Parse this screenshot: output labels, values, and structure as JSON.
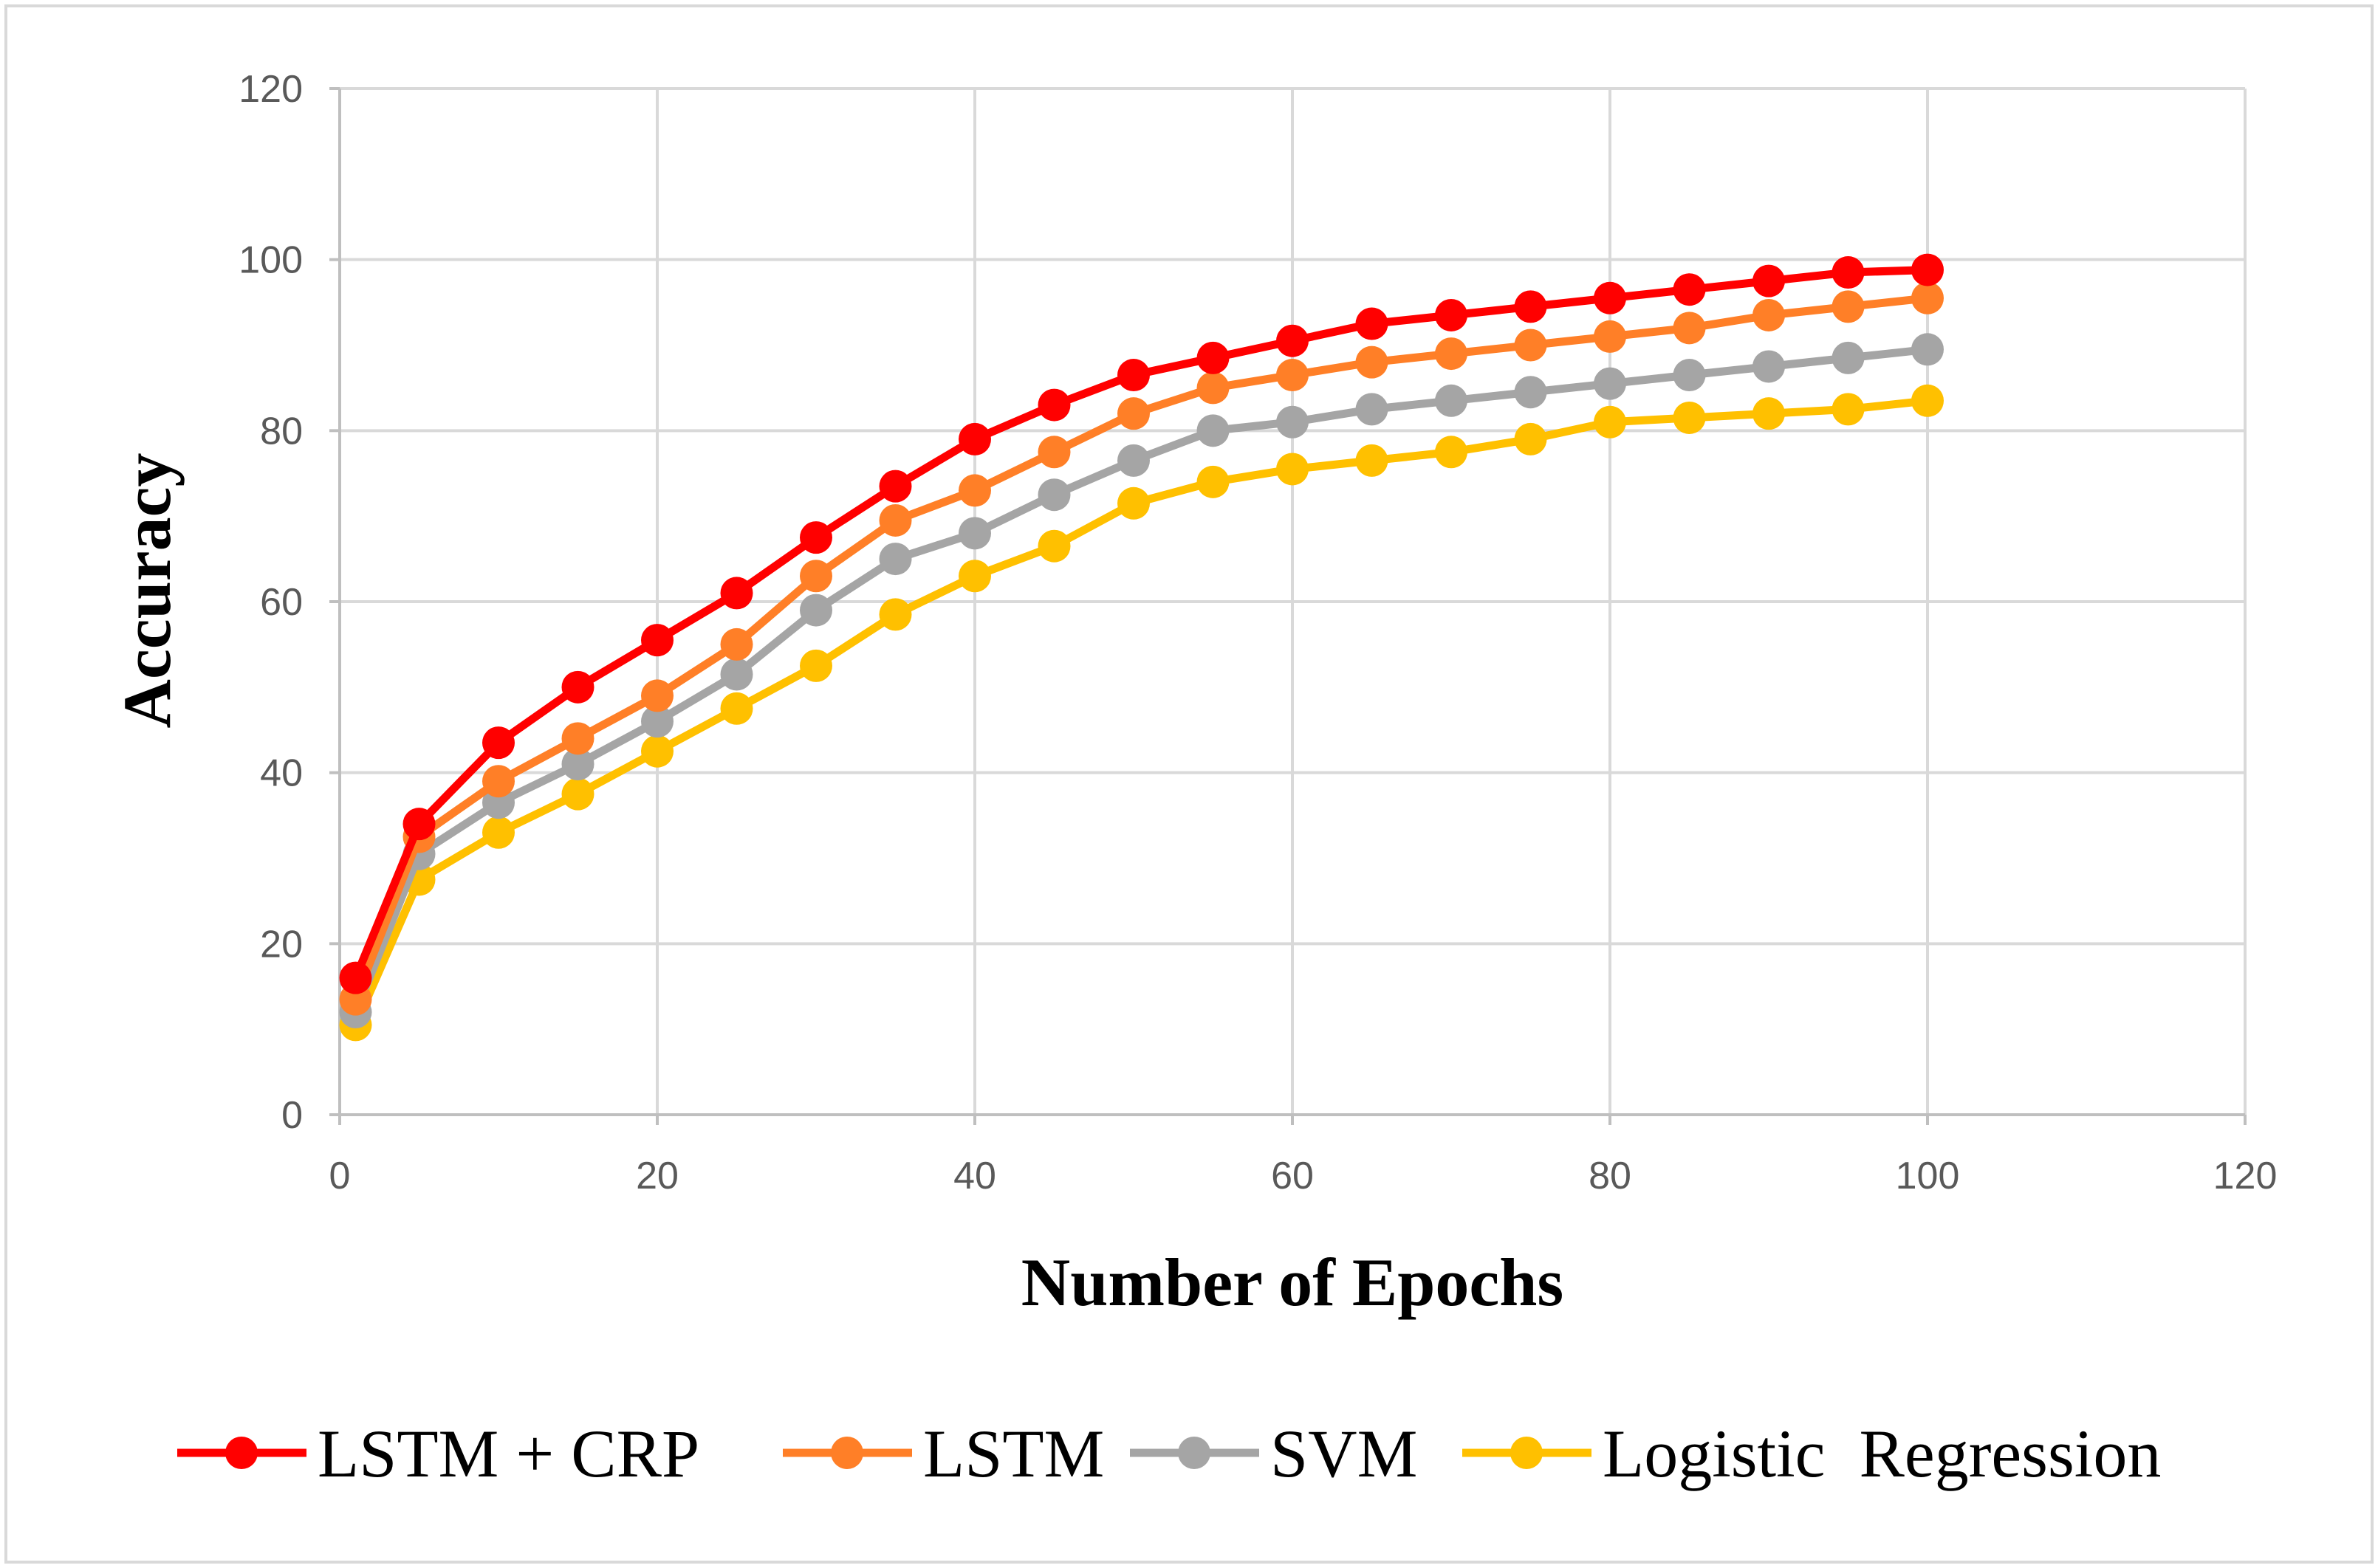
{
  "chart_data": {
    "type": "line",
    "title": "",
    "xlabel": "Number of Epochs",
    "ylabel": "Accuracy",
    "xlim": [
      0,
      120
    ],
    "ylim": [
      0,
      120
    ],
    "xticks": [
      0,
      20,
      40,
      60,
      80,
      100,
      120
    ],
    "yticks": [
      0,
      20,
      40,
      60,
      80,
      100,
      120
    ],
    "grid": true,
    "legend_position": "bottom",
    "x": [
      1,
      5,
      10,
      15,
      20,
      25,
      30,
      35,
      40,
      45,
      50,
      55,
      60,
      65,
      70,
      75,
      80,
      85,
      90,
      95,
      100
    ],
    "series": [
      {
        "name": "LSTM + CRP",
        "color": "#ff0000",
        "values": [
          16,
          34,
          43.5,
          50,
          55.5,
          61,
          67.5,
          73.5,
          79,
          83,
          86.5,
          88.5,
          90.5,
          92.5,
          93.5,
          94.5,
          95.5,
          96.5,
          97.5,
          98.5,
          98.8
        ]
      },
      {
        "name": "LSTM",
        "color": "#ff7f27",
        "values": [
          13.5,
          32.5,
          39,
          44,
          49,
          55,
          63,
          69.5,
          73,
          77.5,
          82,
          85,
          86.5,
          88,
          89,
          90,
          91,
          92,
          93.5,
          94.5,
          95.5
        ]
      },
      {
        "name": "SVM",
        "color": "#a5a5a5",
        "values": [
          12,
          30.5,
          36.5,
          41,
          46,
          51.5,
          59,
          65,
          68,
          72.5,
          76.5,
          80,
          81,
          82.5,
          83.5,
          84.5,
          85.5,
          86.5,
          87.5,
          88.5,
          89.5
        ]
      },
      {
        "name": "Logistic  Regression",
        "color": "#ffc000",
        "values": [
          10.5,
          27.5,
          33,
          37.5,
          42.5,
          47.5,
          52.5,
          58.5,
          63,
          66.5,
          71.5,
          74,
          75.5,
          76.5,
          77.5,
          79,
          81,
          81.5,
          82,
          82.5,
          83.5
        ]
      }
    ]
  }
}
